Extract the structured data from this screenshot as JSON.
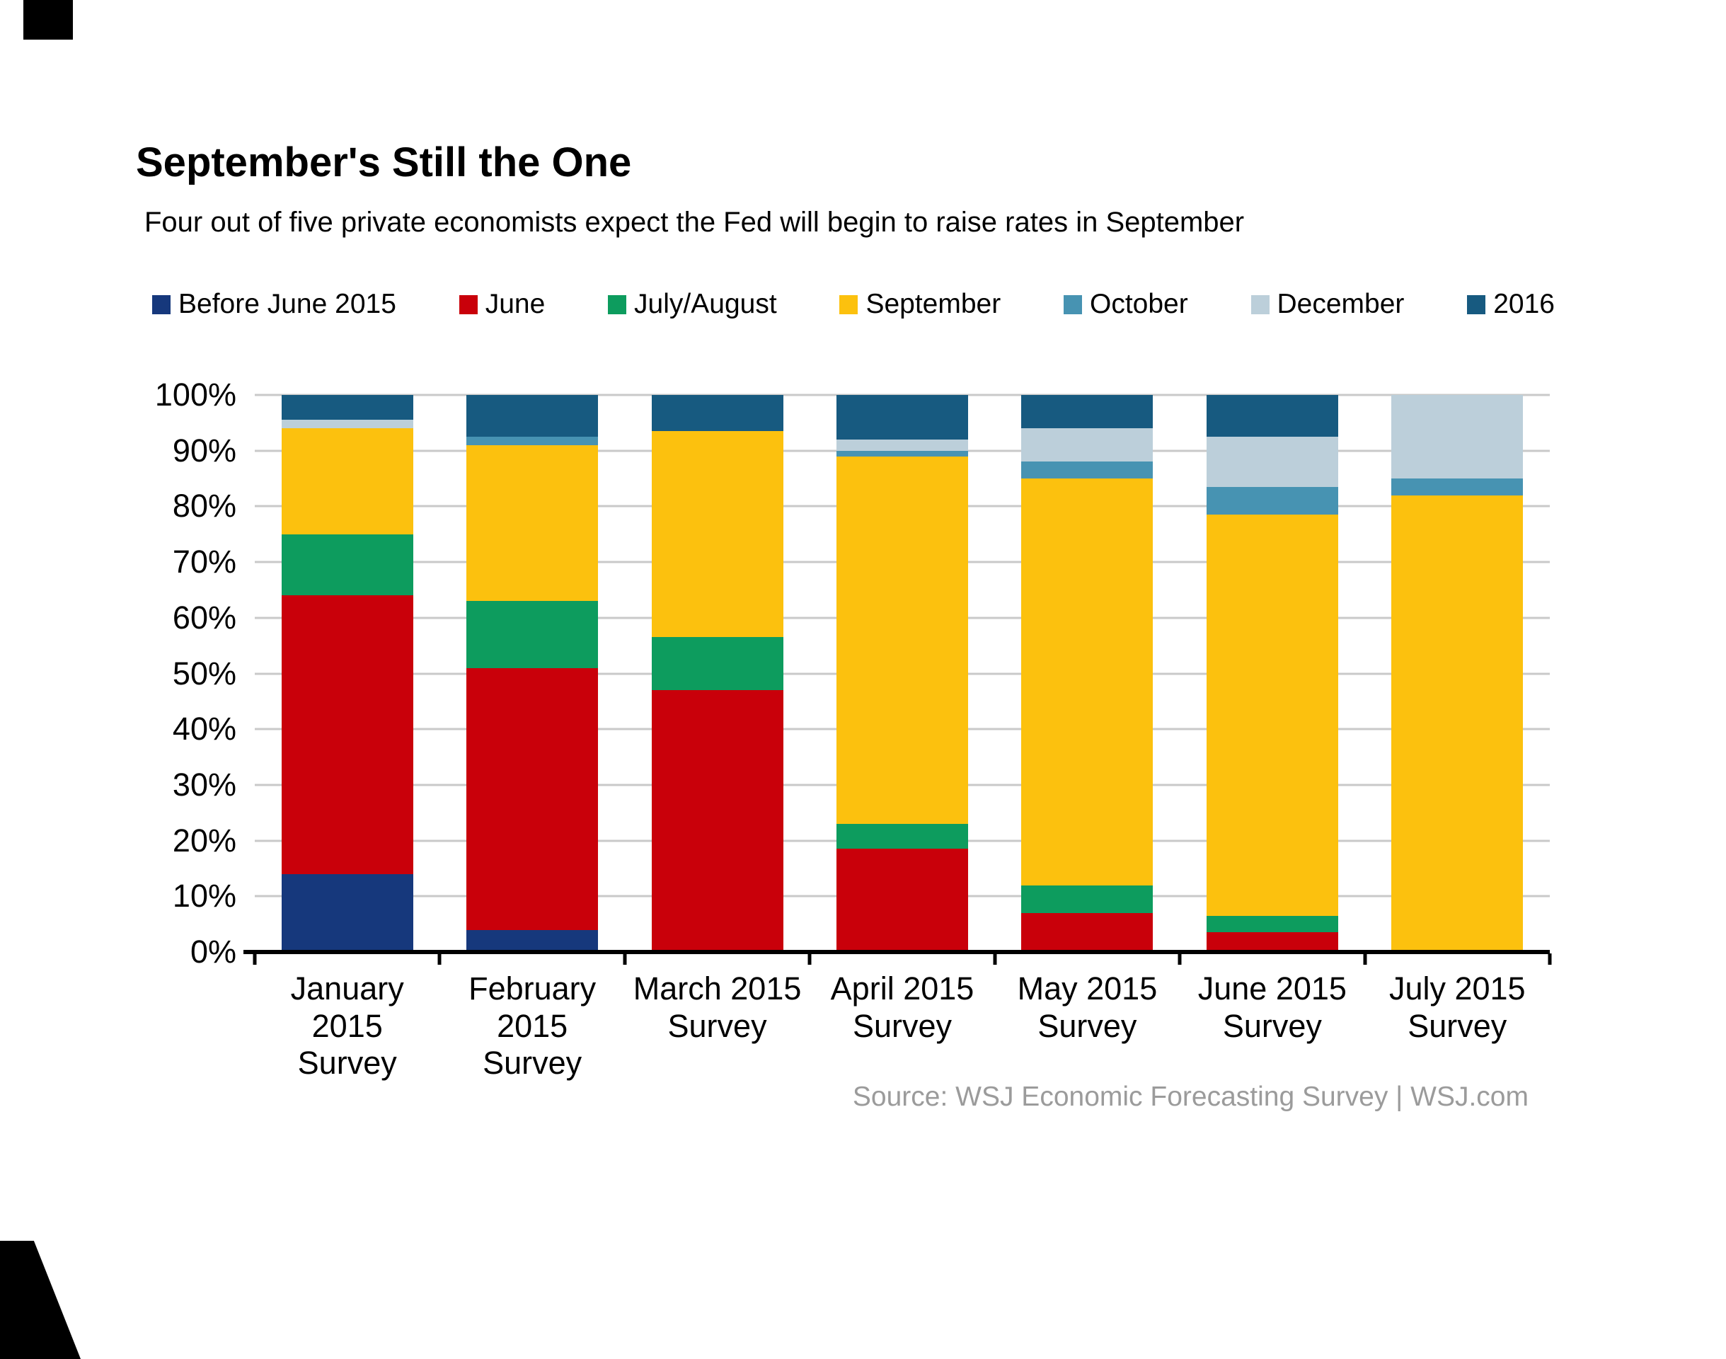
{
  "page": {
    "title": "September's Still the One",
    "subtitle": "Four out of five private economists expect the Fed will begin to raise rates in September",
    "source": "Source: WSJ Economic Forecasting Survey  |  WSJ.com"
  },
  "chart_data": {
    "type": "bar",
    "variant": "stacked-100-percent",
    "title": "September's Still the One",
    "subtitle": "Four out of five private economists expect the Fed will begin to raise rates in September",
    "xlabel": "",
    "ylabel": "",
    "ylim": [
      0,
      100
    ],
    "grid": true,
    "legend_position": "top",
    "gridline_color": "#c9c9c9",
    "axis_color": "#000000",
    "categories": [
      {
        "key": "jan-2015",
        "lines": [
          "January",
          "2015",
          "Survey"
        ]
      },
      {
        "key": "feb-2015",
        "lines": [
          "February",
          "2015",
          "Survey"
        ]
      },
      {
        "key": "mar-2015",
        "lines": [
          "March 2015",
          "Survey"
        ]
      },
      {
        "key": "apr-2015",
        "lines": [
          "April 2015",
          "Survey"
        ]
      },
      {
        "key": "may-2015",
        "lines": [
          "May 2015",
          "Survey"
        ]
      },
      {
        "key": "jun-2015",
        "lines": [
          "June 2015",
          "Survey"
        ]
      },
      {
        "key": "jul-2015",
        "lines": [
          "July 2015",
          "Survey"
        ]
      }
    ],
    "y_ticks": [
      {
        "value": 0,
        "label": "0%"
      },
      {
        "value": 10,
        "label": "10%"
      },
      {
        "value": 20,
        "label": "20%"
      },
      {
        "value": 30,
        "label": "30%"
      },
      {
        "value": 40,
        "label": "40%"
      },
      {
        "value": 50,
        "label": "50%"
      },
      {
        "value": 60,
        "label": "60%"
      },
      {
        "value": 70,
        "label": "70%"
      },
      {
        "value": 80,
        "label": "80%"
      },
      {
        "value": 90,
        "label": "90%"
      },
      {
        "value": 100,
        "label": "100%"
      }
    ],
    "series": [
      {
        "name": "Before June 2015",
        "color": "#16387c",
        "values": [
          14,
          4,
          0,
          0,
          0,
          0,
          0
        ]
      },
      {
        "name": "June",
        "color": "#c9000a",
        "values": [
          50,
          47,
          47,
          18.5,
          7,
          3.5,
          0
        ]
      },
      {
        "name": "July/August",
        "color": "#0d9c5e",
        "values": [
          11,
          12,
          9.5,
          4.5,
          5,
          3,
          0
        ]
      },
      {
        "name": "September",
        "color": "#fcc10e",
        "values": [
          19,
          28,
          37,
          66,
          73,
          72,
          82
        ]
      },
      {
        "name": "October",
        "color": "#4793b2",
        "values": [
          0,
          1.5,
          0,
          1,
          3,
          5,
          3
        ]
      },
      {
        "name": "December",
        "color": "#bccfda",
        "values": [
          1.5,
          0,
          0,
          2,
          6,
          9,
          15
        ]
      },
      {
        "name": "2016",
        "color": "#175a80",
        "values": [
          4.5,
          7.5,
          6.5,
          8,
          6,
          7.5,
          0
        ]
      }
    ]
  }
}
